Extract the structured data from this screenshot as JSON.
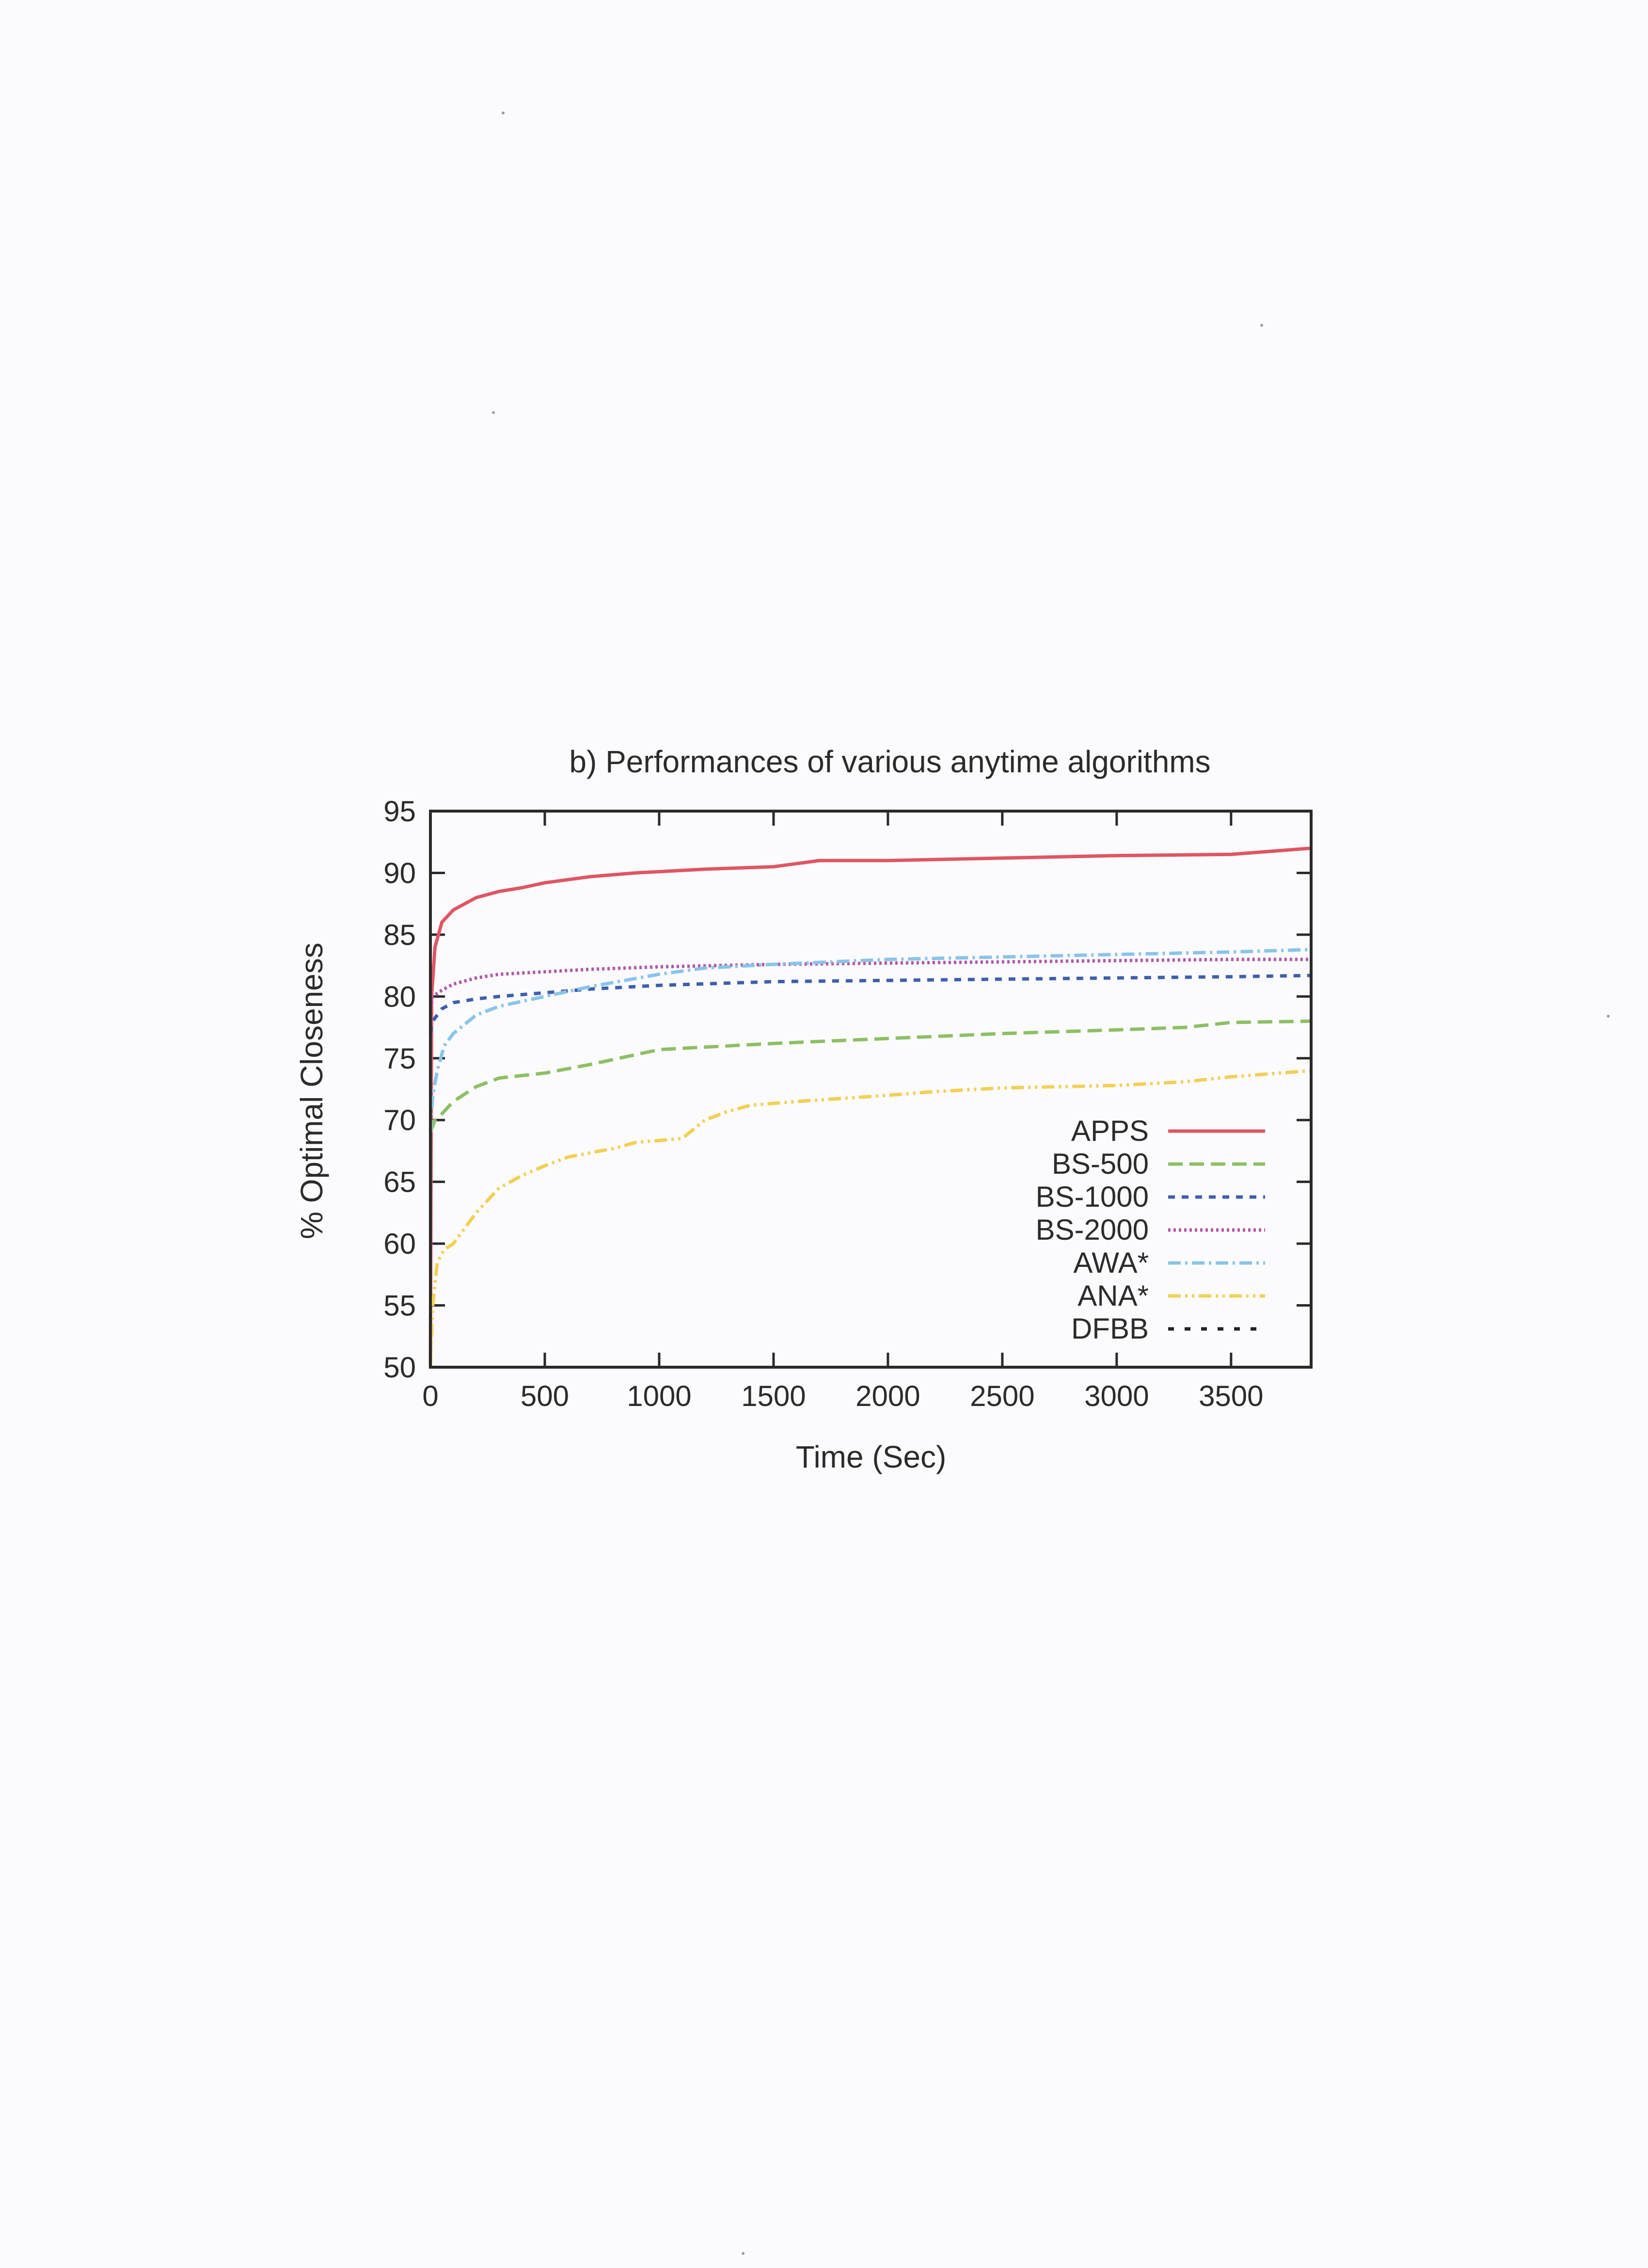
{
  "chart_data": {
    "type": "line",
    "title": "b) Performances of various anytime algorithms",
    "xlabel": "Time (Sec)",
    "ylabel": "% Optimal Closeness",
    "xlim": [
      0,
      3850
    ],
    "ylim": [
      50,
      95
    ],
    "xticks": [
      0,
      500,
      1000,
      1500,
      2000,
      2500,
      3000,
      3500
    ],
    "yticks": [
      50,
      55,
      60,
      65,
      70,
      75,
      80,
      85,
      90,
      95
    ],
    "grid": false,
    "legend_position": "bottom-right",
    "series": [
      {
        "name": "APPS",
        "color": "#e05563",
        "dash": "",
        "x": [
          0,
          5,
          20,
          50,
          100,
          200,
          300,
          400,
          500,
          700,
          900,
          1200,
          1500,
          1700,
          2000,
          2500,
          3000,
          3500,
          3850
        ],
        "y": [
          50,
          80,
          84,
          86,
          87,
          88,
          88.5,
          88.8,
          89.2,
          89.7,
          90,
          90.3,
          90.5,
          91,
          91,
          91.2,
          91.4,
          91.5,
          92
        ]
      },
      {
        "name": "BS-500",
        "color": "#8cc063",
        "dash": "30 14",
        "x": [
          0,
          20,
          50,
          100,
          200,
          300,
          500,
          700,
          900,
          1000,
          1500,
          2000,
          2500,
          3000,
          3300,
          3500,
          3850
        ],
        "y": [
          69,
          70,
          70.5,
          71.5,
          72.7,
          73.4,
          73.8,
          74.5,
          75.3,
          75.7,
          76.2,
          76.6,
          77,
          77.3,
          77.5,
          77.9,
          78
        ]
      },
      {
        "name": "BS-1000",
        "color": "#3d5fae",
        "dash": "14 14",
        "x": [
          0,
          10,
          50,
          100,
          200,
          300,
          500,
          700,
          1000,
          1500,
          2000,
          2500,
          3000,
          3500,
          3850
        ],
        "y": [
          77,
          78,
          79,
          79.5,
          79.8,
          80,
          80.3,
          80.6,
          80.9,
          81.2,
          81.3,
          81.4,
          81.5,
          81.6,
          81.7
        ]
      },
      {
        "name": "BS-2000",
        "color": "#b355a8",
        "dash": "5 6",
        "x": [
          0,
          10,
          50,
          100,
          200,
          300,
          500,
          700,
          1000,
          1500,
          2000,
          2500,
          3000,
          3500,
          3850
        ],
        "y": [
          79,
          80,
          80.5,
          81,
          81.5,
          81.8,
          82,
          82.2,
          82.4,
          82.6,
          82.7,
          82.8,
          82.9,
          83,
          83
        ]
      },
      {
        "name": "AWA*",
        "color": "#89c4ea",
        "dash": "26 9 5 9",
        "x": [
          0,
          10,
          30,
          60,
          100,
          200,
          300,
          500,
          700,
          1000,
          1200,
          1500,
          2000,
          2500,
          3000,
          3500,
          3850
        ],
        "y": [
          69,
          72,
          74,
          76,
          77,
          78.5,
          79.2,
          80,
          80.8,
          81.8,
          82.3,
          82.6,
          83,
          83.2,
          83.4,
          83.6,
          83.8
        ]
      },
      {
        "name": "ANA*",
        "color": "#f3cf55",
        "dash": "26 9 5 9 5 9",
        "x": [
          0,
          10,
          30,
          60,
          100,
          200,
          300,
          400,
          500,
          600,
          800,
          900,
          1100,
          1200,
          1300,
          1400,
          1600,
          2000,
          2200,
          2500,
          3000,
          3300,
          3500,
          3850
        ],
        "y": [
          50,
          55,
          58.5,
          59.5,
          60,
          62.5,
          64.5,
          65.5,
          66.3,
          67,
          67.7,
          68.2,
          68.5,
          70,
          70.7,
          71.2,
          71.5,
          72,
          72.3,
          72.6,
          72.8,
          73.1,
          73.5,
          74
        ]
      },
      {
        "name": "DFBB",
        "color": "#222226",
        "dash": "12 22",
        "x": [],
        "y": []
      }
    ]
  },
  "colors": {
    "background": "#fbfbfd",
    "axis": "#2a2a2a",
    "text": "#2b2b2b"
  }
}
